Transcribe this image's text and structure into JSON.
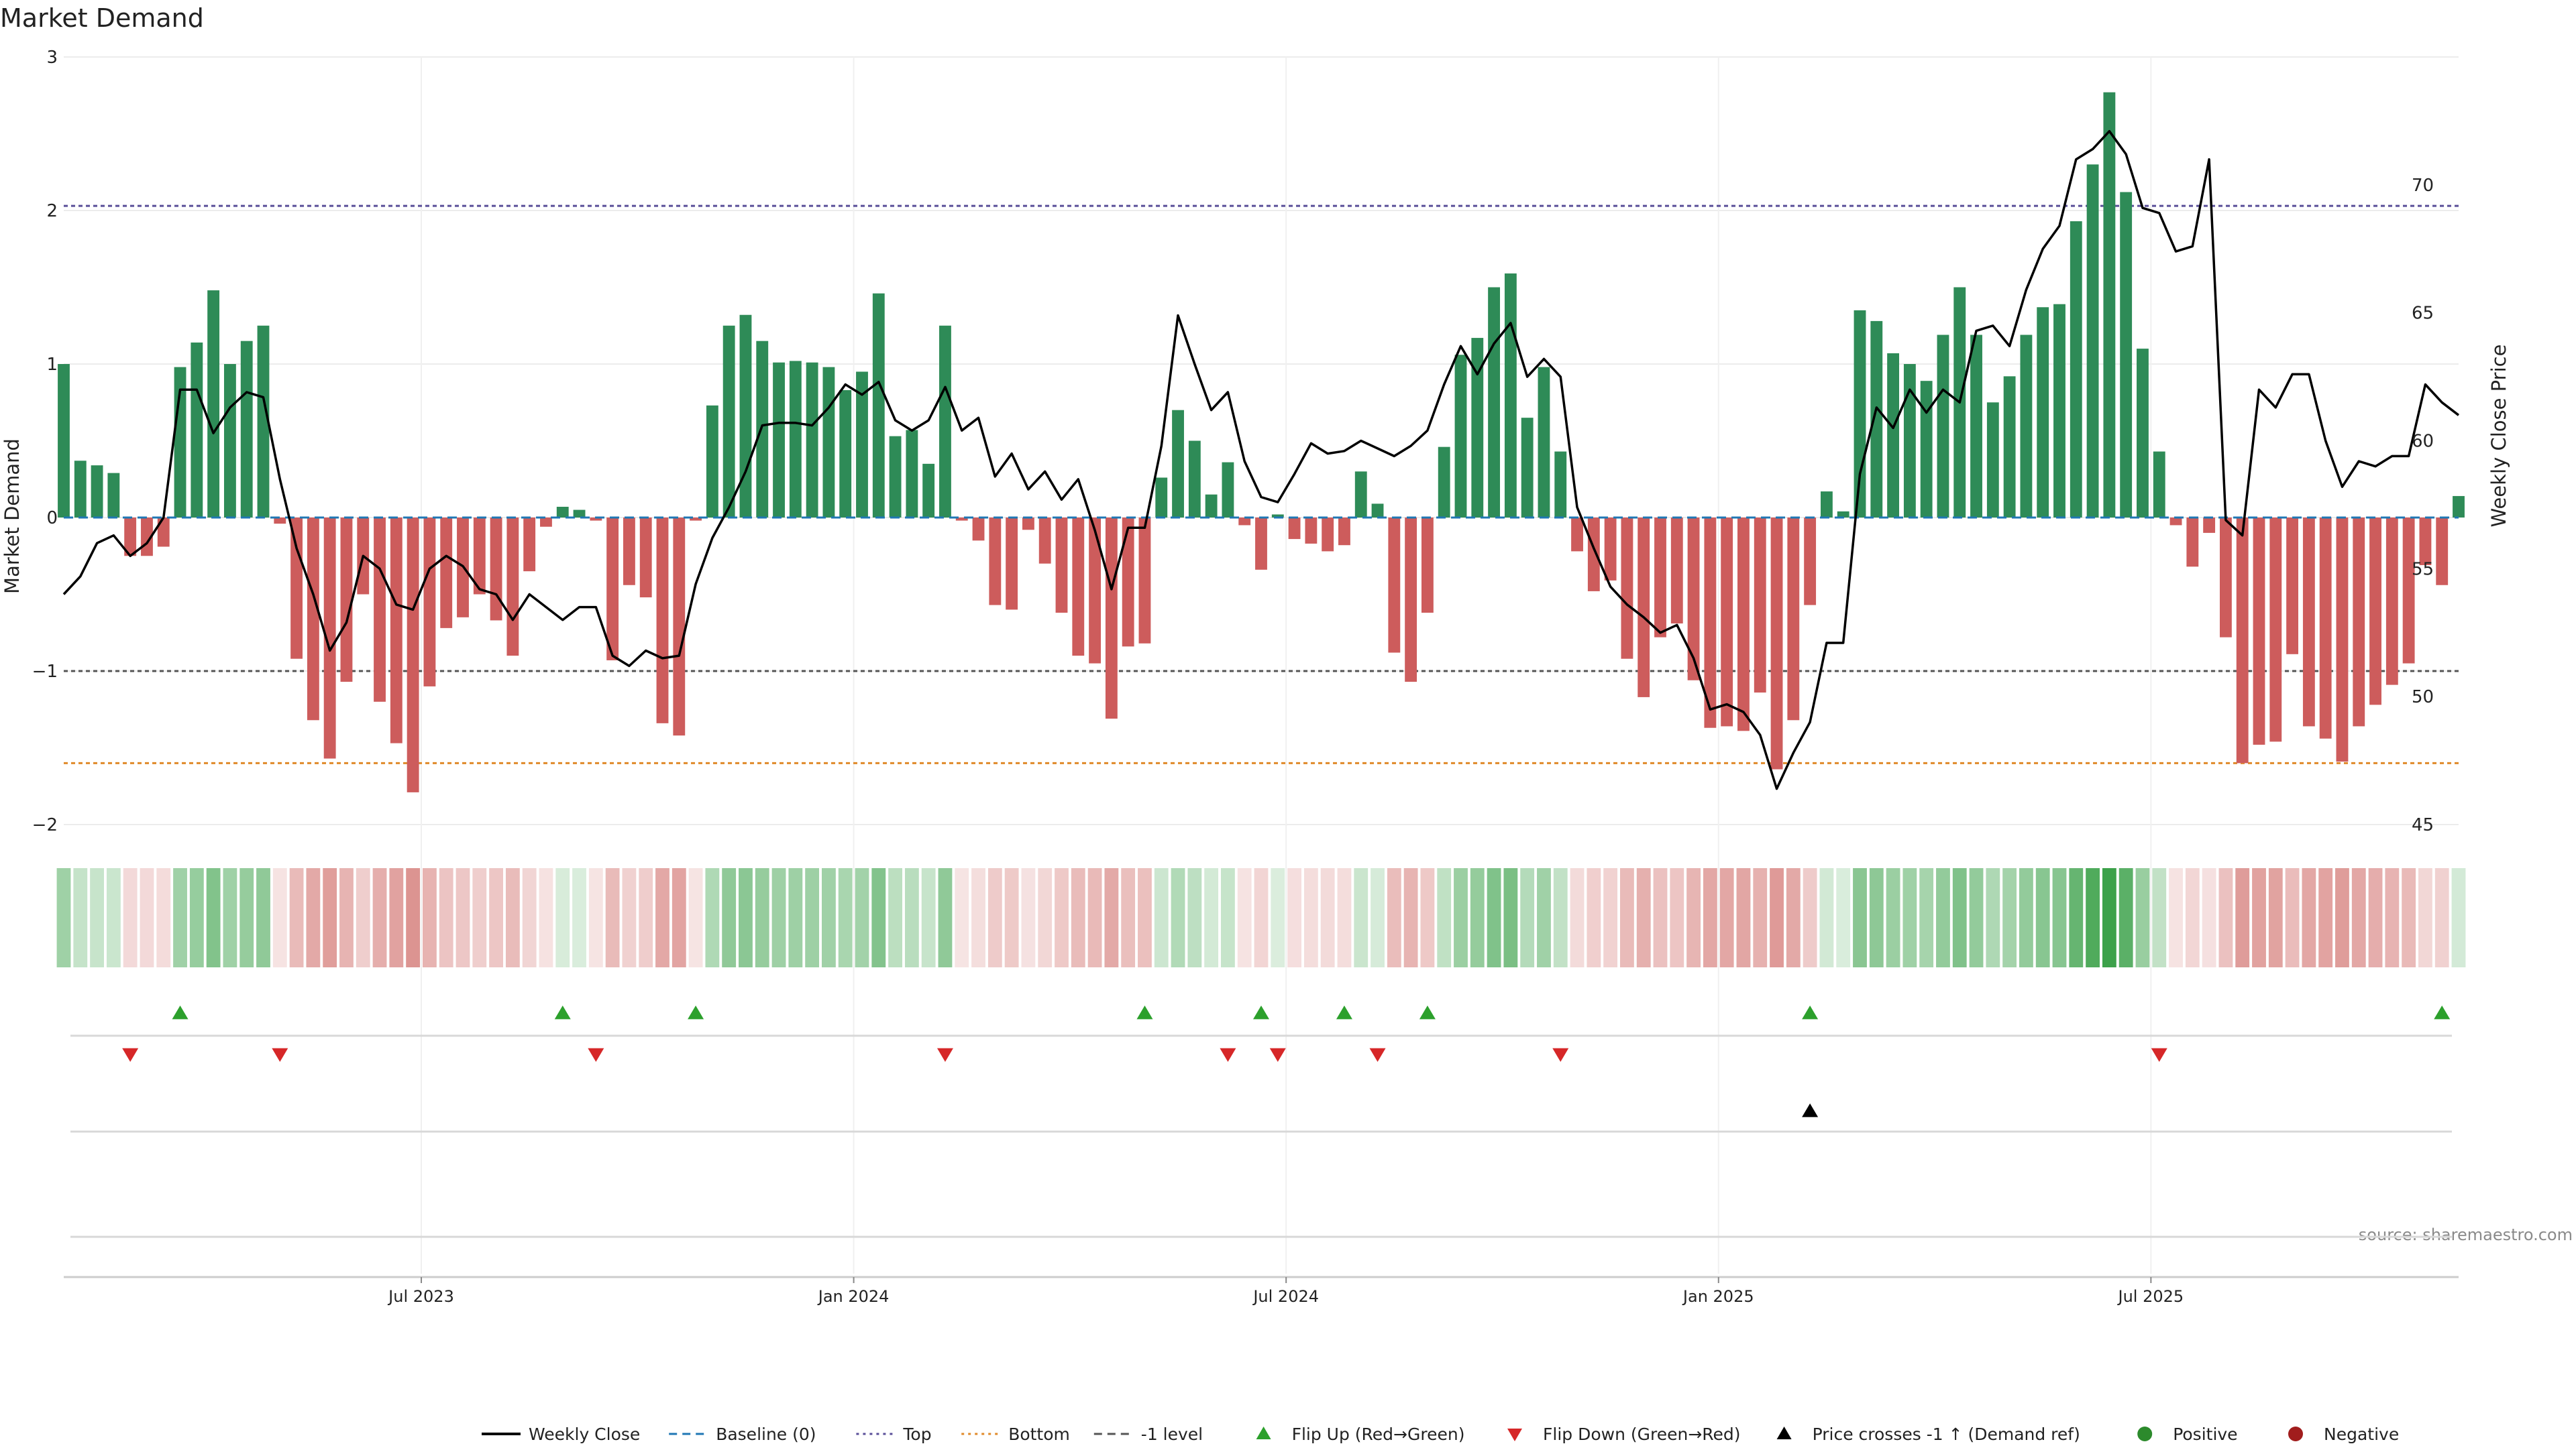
{
  "chart_data": {
    "type": "bar",
    "title": "Market Demand",
    "ylabel": "Market Demand",
    "y2label": "Weekly Close Price",
    "ylim": [
      -2,
      3
    ],
    "y2lim": [
      45,
      75
    ],
    "yticks": [
      "3",
      "2",
      "1",
      "0",
      "−1",
      "−2"
    ],
    "y2ticks": [
      "70",
      "65",
      "60",
      "55",
      "50",
      "45"
    ],
    "xticks": [
      "Jul 2023",
      "Jan 2024",
      "Jul 2024",
      "Jan 2025",
      "Jul 2025"
    ],
    "reference_lines": {
      "top": 2.03,
      "minus_one": -1.0,
      "bottom": -1.6,
      "baseline": 0
    },
    "demand": [
      1.0,
      0.37,
      0.34,
      0.29,
      -0.25,
      -0.25,
      -0.19,
      0.98,
      1.14,
      1.48,
      1.0,
      1.15,
      1.25,
      -0.04,
      -0.92,
      -1.32,
      -1.57,
      -1.07,
      -0.5,
      -1.2,
      -1.47,
      -1.79,
      -1.1,
      -0.72,
      -0.65,
      -0.5,
      -0.67,
      -0.9,
      -0.35,
      -0.06,
      0.07,
      0.05,
      -0.02,
      -0.93,
      -0.44,
      -0.52,
      -1.34,
      -1.42,
      -0.02,
      0.73,
      1.25,
      1.32,
      1.15,
      1.01,
      1.02,
      1.01,
      0.98,
      0.83,
      0.95,
      1.46,
      0.53,
      0.57,
      0.35,
      1.25,
      -0.02,
      -0.15,
      -0.57,
      -0.6,
      -0.08,
      -0.3,
      -0.62,
      -0.9,
      -0.95,
      -1.31,
      -0.84,
      -0.82,
      0.26,
      0.7,
      0.5,
      0.15,
      0.36,
      -0.05,
      -0.34,
      0.02,
      -0.14,
      -0.17,
      -0.22,
      -0.18,
      0.3,
      0.09,
      -0.88,
      -1.07,
      -0.62,
      0.46,
      1.06,
      1.17,
      1.5,
      1.59,
      0.65,
      0.98,
      0.43,
      -0.22,
      -0.48,
      -0.41,
      -0.92,
      -1.17,
      -0.78,
      -0.69,
      -1.06,
      -1.37,
      -1.36,
      -1.39,
      -1.14,
      -1.64,
      -1.32,
      -0.57,
      0.17,
      0.04,
      1.35,
      1.28,
      1.07,
      1.0,
      0.89,
      1.19,
      1.5,
      1.19,
      0.75,
      0.92,
      1.19,
      1.37,
      1.39,
      1.93,
      2.3,
      2.77,
      2.12,
      1.1,
      0.43,
      -0.05,
      -0.32,
      -0.1,
      -0.78,
      -1.6,
      -1.48,
      -1.46,
      -0.89,
      -1.36,
      -1.44,
      -1.59,
      -1.36,
      -1.22,
      -1.09,
      -0.95,
      -0.31,
      -0.44,
      0.14
    ],
    "weekly_close": [
      54.0,
      54.7,
      56.0,
      56.3,
      55.5,
      56.0,
      57.0,
      62.0,
      62.0,
      60.3,
      61.3,
      61.9,
      61.7,
      58.5,
      55.8,
      54.0,
      51.8,
      52.9,
      55.5,
      55.0,
      53.6,
      53.4,
      55.0,
      55.5,
      55.1,
      54.2,
      54.0,
      53.0,
      54.0,
      53.5,
      53.0,
      53.5,
      53.5,
      51.6,
      51.2,
      51.8,
      51.5,
      51.6,
      54.4,
      56.2,
      57.4,
      58.8,
      60.6,
      60.7,
      60.7,
      60.6,
      61.3,
      62.2,
      61.8,
      62.3,
      60.8,
      60.4,
      60.8,
      62.1,
      60.4,
      60.9,
      58.6,
      59.5,
      58.1,
      58.8,
      57.7,
      58.5,
      56.5,
      54.2,
      56.6,
      56.6,
      59.8,
      64.9,
      63.0,
      61.2,
      61.9,
      59.2,
      57.8,
      57.6,
      58.7,
      59.9,
      59.5,
      59.6,
      60.0,
      59.7,
      59.4,
      59.8,
      60.4,
      62.2,
      63.7,
      62.6,
      63.8,
      64.6,
      62.5,
      63.2,
      62.5,
      57.4,
      55.8,
      54.3,
      53.6,
      53.1,
      52.5,
      52.8,
      51.5,
      49.5,
      49.7,
      49.4,
      48.5,
      46.4,
      47.8,
      49.0,
      52.1,
      52.1,
      58.7,
      61.3,
      60.5,
      62.0,
      61.1,
      62.0,
      61.5,
      64.3,
      64.5,
      63.7,
      65.9,
      67.5,
      68.4,
      71.0,
      71.4,
      72.1,
      71.2,
      69.1,
      68.9,
      67.4,
      67.6,
      71.0,
      56.9,
      56.3,
      62.0,
      61.3,
      62.6,
      62.6,
      60.0,
      58.2,
      59.2,
      59.0,
      59.4,
      59.4,
      62.2,
      61.5,
      61.0
    ],
    "flip_up": [
      "Flip Up",
      7,
      30,
      38,
      65,
      72,
      77,
      82,
      105,
      143
    ],
    "flip_down": [
      4,
      13,
      32,
      53,
      70,
      73,
      79,
      90,
      126
    ],
    "price_cross": [
      105
    ],
    "ribbon_note": "color intensity encodes demand level",
    "source": "source: sharemaestro.com",
    "legend": [
      {
        "label": "Weekly Close",
        "kind": "line",
        "color": "#000000"
      },
      {
        "label": "Baseline (0)",
        "kind": "dash",
        "color": "#1f77b4"
      },
      {
        "label": "Top",
        "kind": "dot",
        "color": "#5a4f99"
      },
      {
        "label": "Bottom",
        "kind": "dot",
        "color": "#e08a2a"
      },
      {
        "label": "-1 level",
        "kind": "dash",
        "color": "#555555"
      },
      {
        "label": "Flip Up (Red→Green)",
        "kind": "tri-up",
        "color": "#2ca02c"
      },
      {
        "label": "Flip Down (Green→Red)",
        "kind": "tri-down",
        "color": "#d62728"
      },
      {
        "label": "Price crosses -1 ↑ (Demand ref)",
        "kind": "tri-up",
        "color": "#000000"
      },
      {
        "label": "Positive",
        "kind": "dot-circle",
        "color": "#2c8a2c"
      },
      {
        "label": "Negative",
        "kind": "dot-circle",
        "color": "#a11d1d"
      }
    ],
    "colors": {
      "pos": "#2e8b57",
      "neg": "#cd5c5c",
      "up": "#2ca02c",
      "down": "#d62728"
    }
  }
}
